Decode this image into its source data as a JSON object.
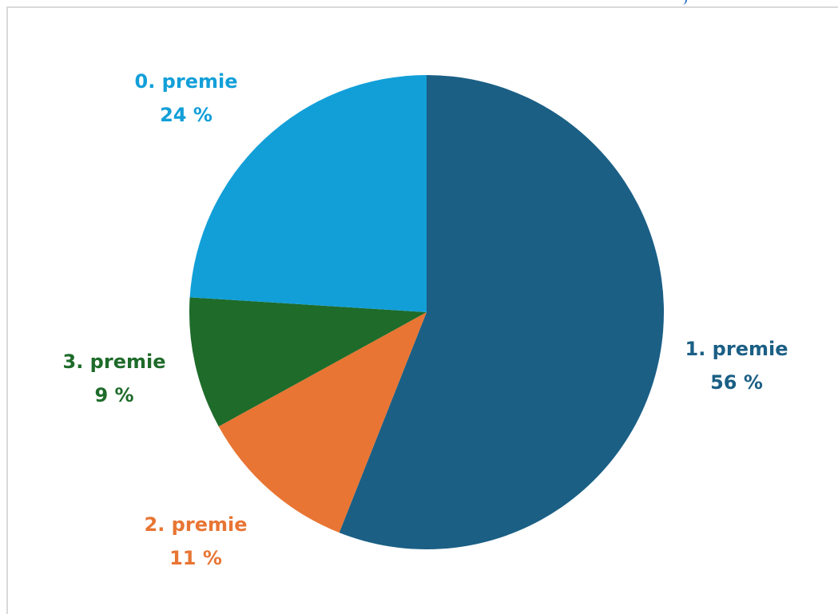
{
  "chart_data": {
    "type": "pie",
    "categories": [
      "1. premie",
      "2. premie",
      "3. premie",
      "0. premie"
    ],
    "values": [
      56,
      11,
      9,
      24
    ],
    "value_labels": [
      "56 %",
      "11 %",
      "9 %",
      "24 %"
    ],
    "colors": [
      "#1b5f85",
      "#e87533",
      "#1e6b2a",
      "#129fd8"
    ],
    "start_angle_deg": 0,
    "direction": "clockwise",
    "legend": "none",
    "title": ""
  }
}
